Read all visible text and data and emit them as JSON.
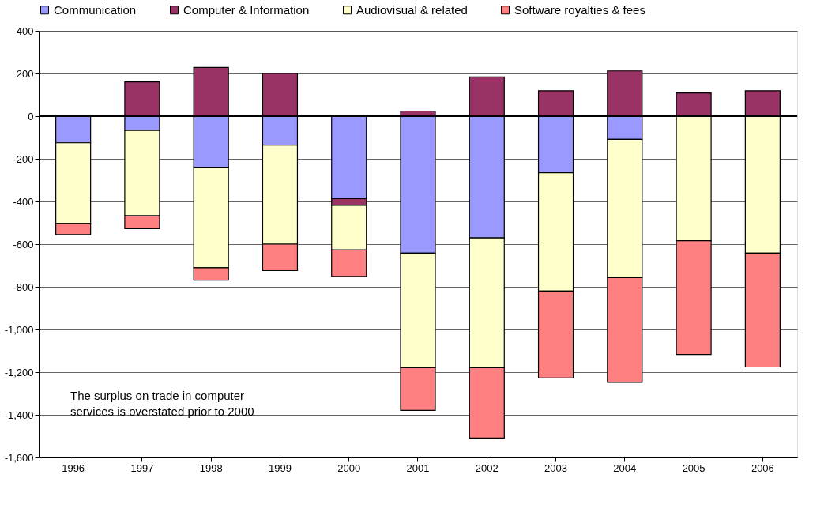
{
  "chart_data": {
    "type": "bar",
    "stacked": true,
    "categories": [
      "1996",
      "1997",
      "1998",
      "1999",
      "2000",
      "2001",
      "2002",
      "2003",
      "2004",
      "2005",
      "2006"
    ],
    "series": [
      {
        "name": "Communication",
        "color": "#9999ff",
        "values": [
          -125,
          -67,
          -239,
          -136,
          -387,
          -642,
          -571,
          -265,
          -109,
          null,
          null
        ]
      },
      {
        "name": "Computer & Information",
        "color": "#993366",
        "values": [
          null,
          161,
          228,
          200,
          -31,
          24,
          184,
          119,
          212,
          109,
          119
        ]
      },
      {
        "name": "Audiovisual & related",
        "color": "#ffffcc",
        "values": [
          -378,
          -400,
          -472,
          -464,
          -209,
          -537,
          -608,
          -555,
          -648,
          -584,
          -642
        ]
      },
      {
        "name": "Software royalties & fees",
        "color": "#ff8080",
        "values": [
          -52,
          -60,
          -58,
          -124,
          -124,
          -200,
          -330,
          -407,
          -491,
          -533,
          -534
        ]
      }
    ],
    "ylim": [
      -1600,
      400
    ],
    "yticks": [
      {
        "value": -1600,
        "label": "-1,600"
      },
      {
        "value": -1400,
        "label": "-1,400"
      },
      {
        "value": -1200,
        "label": "-1,200"
      },
      {
        "value": -1000,
        "label": "-1,000"
      },
      -800,
      -600,
      -400,
      -200,
      0,
      200,
      400
    ],
    "grid": "y",
    "legend": "top",
    "annotations": [
      "The surplus on trade in computer services is overstated prior to 2000"
    ]
  }
}
